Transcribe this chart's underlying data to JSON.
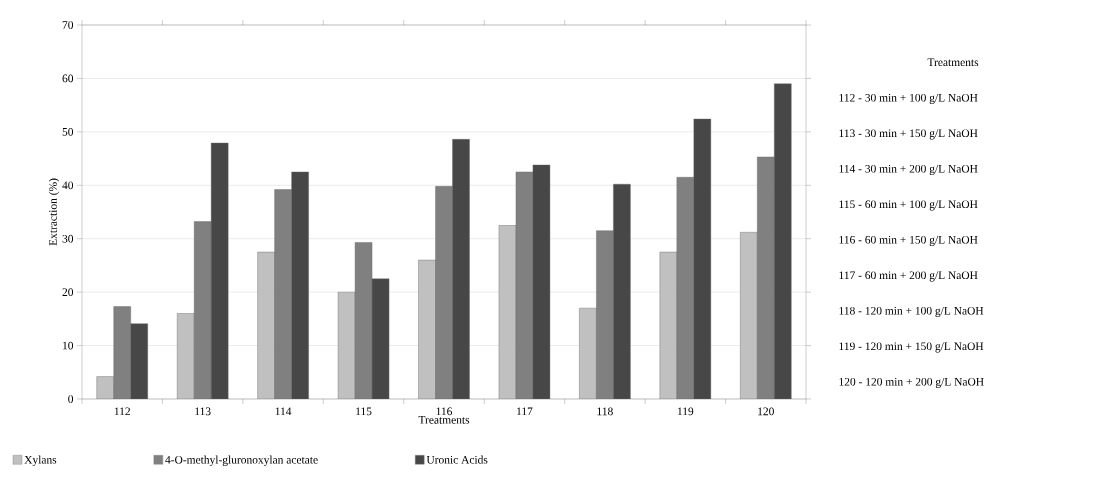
{
  "chart_data": {
    "type": "bar",
    "xlabel": "Treatments",
    "ylabel": "Extraction (%)",
    "categories": [
      "112",
      "113",
      "114",
      "115",
      "116",
      "117",
      "118",
      "119",
      "120"
    ],
    "series": [
      {
        "name": "Xylans",
        "color": "#c0c0c0",
        "values": [
          4.2,
          16,
          27.5,
          20,
          26,
          32.5,
          17,
          27.5,
          31.2
        ]
      },
      {
        "name": "4-O-methyl-gluronoxylan acetate",
        "color": "#808080",
        "values": [
          17.3,
          33.2,
          39.2,
          29.3,
          39.8,
          42.5,
          31.5,
          41.5,
          45.3
        ]
      },
      {
        "name": "Uronic Acids",
        "color": "#474747",
        "values": [
          14.1,
          47.9,
          42.5,
          22.5,
          48.6,
          43.8,
          40.2,
          52.4,
          59
        ]
      }
    ],
    "ylim": [
      0,
      70
    ],
    "yticks": [
      0,
      10,
      20,
      30,
      40,
      50,
      60,
      70
    ],
    "grid": "y",
    "legend": "bottom",
    "annotations": [
      "Treatments",
      "112 - 30 min + 100 g/L NaOH",
      "113 - 30 min + 150 g/L NaOH",
      "114 - 30 min + 200 g/L NaOH",
      "115 - 60 min + 100 g/L NaOH",
      "116 - 60 min + 150 g/L NaOH",
      "117 - 60 min + 200 g/L NaOH",
      "118 - 120 min + 100 g/L NaOH",
      "119 - 120 min + 150 g/L NaOH",
      "120 - 120 min + 200 g/L NaOH"
    ]
  }
}
